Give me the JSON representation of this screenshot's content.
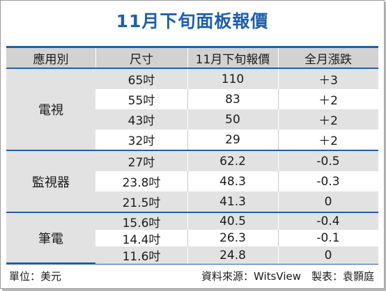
{
  "title": "11月下旬面板報價",
  "headers": [
    "應用別",
    "尺寸",
    "11月下旬報價",
    "全月漲跌"
  ],
  "groups": [
    {
      "category": "電視",
      "rows": [
        {
          "size": "65吋",
          "price": "110",
          "change": "＋3"
        },
        {
          "size": "55吋",
          "price": "83",
          "change": "＋2"
        },
        {
          "size": "43吋",
          "price": "50",
          "change": "＋2"
        },
        {
          "size": "32吋",
          "price": "29",
          "change": "＋2"
        }
      ]
    },
    {
      "category": "監視器",
      "rows": [
        {
          "size": "27吋",
          "price": "62.2",
          "change": "-0.5"
        },
        {
          "size": "23.8吋",
          "price": "48.3",
          "change": "-0.3"
        },
        {
          "size": "21.5吋",
          "price": "41.3",
          "change": "0"
        }
      ]
    },
    {
      "category": "筆電",
      "rows": [
        {
          "size": "15.6吋",
          "price": "40.5",
          "change": "-0.4"
        },
        {
          "size": "14.4吋",
          "price": "26.3",
          "change": "-0.1"
        },
        {
          "size": "11.6吋",
          "price": "24.8",
          "change": "0"
        }
      ]
    }
  ],
  "footer": {
    "unit": "單位：美元",
    "source": "資料來源：WitsView　製表：袁顥庭"
  },
  "colors": {
    "accent": "#1f5fa8",
    "header_bg": "#d2d2d2",
    "shade_bg": "#e2e2e2"
  }
}
